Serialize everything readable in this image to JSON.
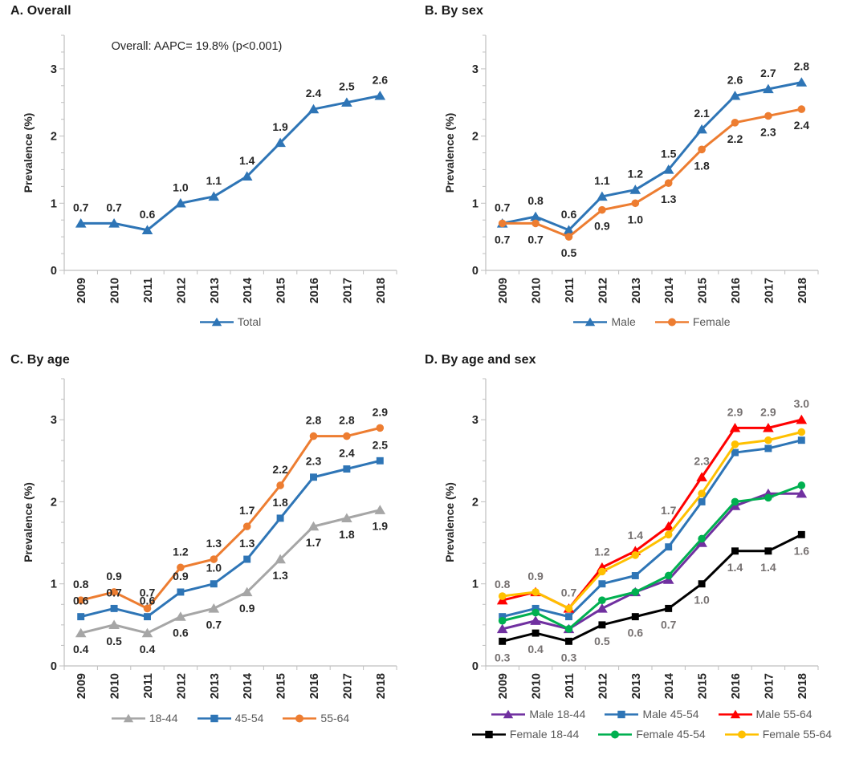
{
  "figure": {
    "background": "#FFFFFF",
    "description": "Four-panel line chart figure of prevalence (%) trends, 2009-2018"
  },
  "chart_data": [
    {
      "panel": "A",
      "type": "line",
      "title": "A. Overall",
      "annotation": "Overall: AAPC= 19.8% (p<0.001)",
      "ylabel": "Prevalence (%)",
      "ylim": [
        0,
        3.5
      ],
      "yticks": [
        0,
        1,
        2,
        3
      ],
      "y_minor_step": 0.25,
      "grid": false,
      "legend_position": "bottom",
      "categories": [
        "2009",
        "2010",
        "2011",
        "2012",
        "2013",
        "2014",
        "2015",
        "2016",
        "2017",
        "2018"
      ],
      "series": [
        {
          "name": "Total",
          "color": "#2E75B6",
          "marker": "triangle",
          "values": [
            0.7,
            0.7,
            0.6,
            1.0,
            1.1,
            1.4,
            1.9,
            2.4,
            2.5,
            2.6
          ],
          "labels": [
            "0.7",
            "0.7",
            "0.6",
            "1.0",
            "1.1",
            "1.4",
            "1.9",
            "2.4",
            "2.5",
            "2.6"
          ],
          "label_position": "above",
          "label_color": "#262626"
        }
      ]
    },
    {
      "panel": "B",
      "type": "line",
      "title": "B. By sex",
      "ylabel": "Prevalence (%)",
      "ylim": [
        0,
        3.5
      ],
      "yticks": [
        0,
        1,
        2,
        3
      ],
      "y_minor_step": 0.25,
      "grid": false,
      "legend_position": "bottom",
      "categories": [
        "2009",
        "2010",
        "2011",
        "2012",
        "2013",
        "2014",
        "2015",
        "2016",
        "2017",
        "2018"
      ],
      "series": [
        {
          "name": "Male",
          "color": "#2E75B6",
          "marker": "triangle",
          "values": [
            0.7,
            0.8,
            0.6,
            1.1,
            1.2,
            1.5,
            2.1,
            2.6,
            2.7,
            2.8
          ],
          "labels": [
            "0.7",
            "0.8",
            "0.6",
            "1.1",
            "1.2",
            "1.5",
            "2.1",
            "2.6",
            "2.7",
            "2.8"
          ],
          "label_position": "above",
          "label_color": "#262626"
        },
        {
          "name": "Female",
          "color": "#ED7D31",
          "marker": "circle",
          "values": [
            0.7,
            0.7,
            0.5,
            0.9,
            1.0,
            1.3,
            1.8,
            2.2,
            2.3,
            2.4
          ],
          "labels": [
            "0.7",
            "0.7",
            "0.5",
            "0.9",
            "1.0",
            "1.3",
            "1.8",
            "2.2",
            "2.3",
            "2.4"
          ],
          "label_position": "below",
          "label_color": "#262626"
        }
      ]
    },
    {
      "panel": "C",
      "type": "line",
      "title": "C. By age",
      "ylabel": "Prevalence (%)",
      "ylim": [
        0,
        3.5
      ],
      "yticks": [
        0,
        1,
        2,
        3
      ],
      "y_minor_step": 0.25,
      "grid": false,
      "legend_position": "bottom",
      "categories": [
        "2009",
        "2010",
        "2011",
        "2012",
        "2013",
        "2014",
        "2015",
        "2016",
        "2017",
        "2018"
      ],
      "series": [
        {
          "name": "18-44",
          "color": "#A6A6A6",
          "marker": "triangle",
          "values": [
            0.4,
            0.5,
            0.4,
            0.6,
            0.7,
            0.9,
            1.3,
            1.7,
            1.8,
            1.9
          ],
          "labels": [
            "0.4",
            "0.5",
            "0.4",
            "0.6",
            "0.7",
            "0.9",
            "1.3",
            "1.7",
            "1.8",
            "1.9"
          ],
          "label_position": "below",
          "label_color": "#262626"
        },
        {
          "name": "45-54",
          "color": "#2E75B6",
          "marker": "square",
          "values": [
            0.6,
            0.7,
            0.6,
            0.9,
            1.0,
            1.3,
            1.8,
            2.3,
            2.4,
            2.5
          ],
          "labels": [
            "0.6",
            "0.7",
            "0.6",
            "0.9",
            "1.0",
            "1.3",
            "1.8",
            "2.3",
            "2.4",
            "2.5"
          ],
          "label_position": "above",
          "label_color": "#262626"
        },
        {
          "name": "55-64",
          "color": "#ED7D31",
          "marker": "circle",
          "values": [
            0.8,
            0.9,
            0.7,
            1.2,
            1.3,
            1.7,
            2.2,
            2.8,
            2.8,
            2.9
          ],
          "labels": [
            "0.8",
            "0.9",
            "0.7",
            "1.2",
            "1.3",
            "1.7",
            "2.2",
            "2.8",
            "2.8",
            "2.9"
          ],
          "label_position": "above",
          "label_color": "#262626"
        }
      ]
    },
    {
      "panel": "D",
      "type": "line",
      "title": "D. By age and sex",
      "ylabel": "Prevalence (%)",
      "ylim": [
        0,
        3.5
      ],
      "yticks": [
        0,
        1,
        2,
        3
      ],
      "y_minor_step": 0.25,
      "grid": false,
      "legend_position": "bottom",
      "legend_rows": 2,
      "categories": [
        "2009",
        "2010",
        "2011",
        "2012",
        "2013",
        "2014",
        "2015",
        "2016",
        "2017",
        "2018"
      ],
      "series": [
        {
          "name": "Male 18-44",
          "color": "#7030A0",
          "marker": "triangle",
          "values": [
            0.45,
            0.55,
            0.45,
            0.7,
            0.9,
            1.05,
            1.5,
            1.95,
            2.1,
            2.1
          ],
          "labels": null,
          "label_position": "above",
          "label_color": "#767171"
        },
        {
          "name": "Male 45-54",
          "color": "#2E75B6",
          "marker": "square",
          "values": [
            0.6,
            0.7,
            0.6,
            1.0,
            1.1,
            1.45,
            2.0,
            2.6,
            2.65,
            2.75
          ],
          "labels": null,
          "label_position": "above",
          "label_color": "#767171"
        },
        {
          "name": "Male 55-64",
          "color": "#FF0000",
          "marker": "triangle",
          "values": [
            0.8,
            0.9,
            0.7,
            1.2,
            1.4,
            1.7,
            2.3,
            2.9,
            2.9,
            3.0
          ],
          "labels": [
            "0.8",
            "0.9",
            "0.7",
            "1.2",
            "1.4",
            "1.7",
            "2.3",
            "2.9",
            "2.9",
            "3.0"
          ],
          "label_position": "above",
          "label_color": "#767171"
        },
        {
          "name": "Female 18-44",
          "color": "#000000",
          "marker": "square",
          "values": [
            0.3,
            0.4,
            0.3,
            0.5,
            0.6,
            0.7,
            1.0,
            1.4,
            1.4,
            1.6
          ],
          "labels": [
            "0.3",
            "0.4",
            "0.3",
            "0.5",
            "0.6",
            "0.7",
            "1.0",
            "1.4",
            "1.4",
            "1.6"
          ],
          "label_position": "below",
          "label_color": "#767171"
        },
        {
          "name": "Female 45-54",
          "color": "#00B050",
          "marker": "circle",
          "values": [
            0.55,
            0.65,
            0.45,
            0.8,
            0.9,
            1.1,
            1.55,
            2.0,
            2.05,
            2.2
          ],
          "labels": null,
          "label_position": "above",
          "label_color": "#767171"
        },
        {
          "name": "Female 55-64",
          "color": "#FFC000",
          "marker": "circle",
          "values": [
            0.85,
            0.9,
            0.7,
            1.15,
            1.35,
            1.6,
            2.1,
            2.7,
            2.75,
            2.85
          ],
          "labels": null,
          "label_position": "above",
          "label_color": "#767171"
        }
      ]
    }
  ]
}
